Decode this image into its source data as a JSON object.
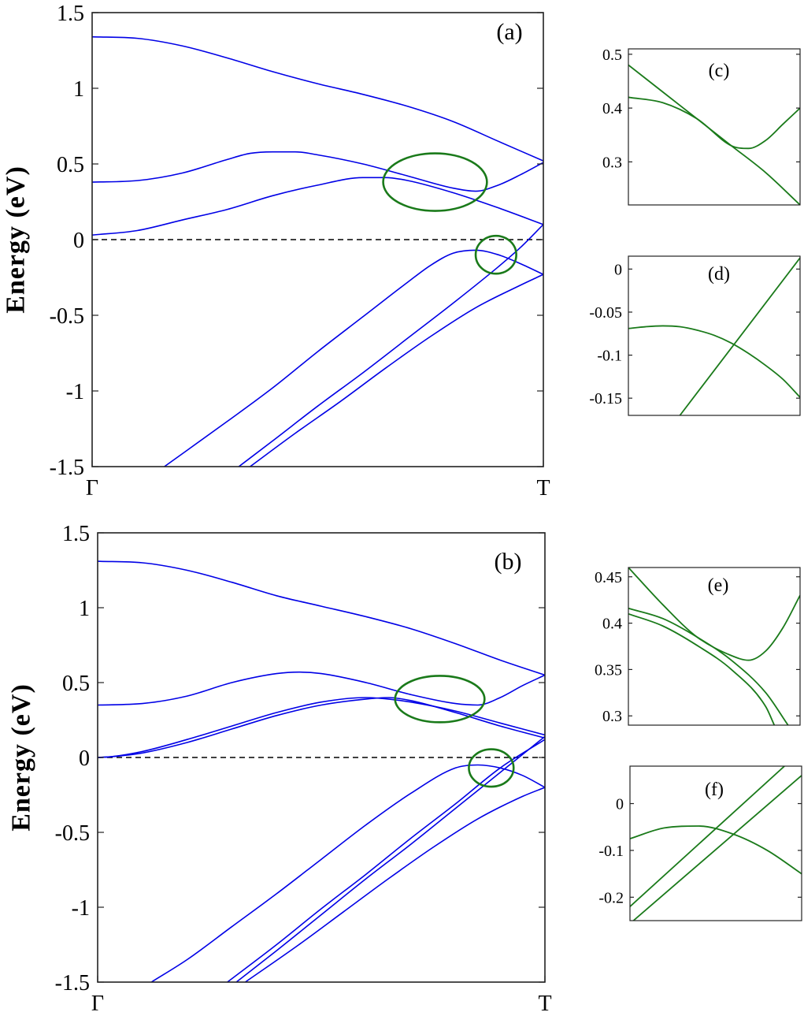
{
  "figure": {
    "colors": {
      "bands": "#0000e6",
      "highlight": "#1a7a1a",
      "fermi": "#000000"
    }
  },
  "chart_data": [
    {
      "id": "a",
      "type": "line",
      "panel_label": "(a)",
      "ylabel": "Energy (eV)",
      "ylim": [
        -1.5,
        1.5
      ],
      "yticks": [
        1.5,
        1,
        0.5,
        0,
        -0.5,
        -1,
        -1.5
      ],
      "ytick_labels": [
        "1.5",
        "1",
        "0.5",
        "0",
        "-0.5",
        "-1",
        "-1.5"
      ],
      "xlim": [
        0,
        1
      ],
      "xtick_labels": [
        "Γ",
        "T"
      ],
      "fermi_level": 0,
      "series": [
        {
          "name": "band 1",
          "x": [
            0,
            0.1,
            0.2,
            0.3,
            0.4,
            0.5,
            0.6,
            0.7,
            0.8,
            0.9,
            1
          ],
          "y": [
            1.34,
            1.33,
            1.28,
            1.2,
            1.11,
            1.03,
            0.96,
            0.88,
            0.78,
            0.65,
            0.52
          ]
        },
        {
          "name": "band 2",
          "x": [
            0,
            0.1,
            0.2,
            0.3,
            0.35,
            0.4,
            0.45,
            0.5,
            0.6,
            0.7,
            0.8,
            0.85,
            0.9,
            0.95,
            1
          ],
          "y": [
            0.38,
            0.39,
            0.44,
            0.53,
            0.57,
            0.58,
            0.58,
            0.56,
            0.5,
            0.42,
            0.34,
            0.32,
            0.36,
            0.43,
            0.51
          ]
        },
        {
          "name": "band 3",
          "x": [
            0,
            0.1,
            0.2,
            0.3,
            0.4,
            0.5,
            0.6,
            0.65,
            0.7,
            0.8,
            0.9,
            1
          ],
          "y": [
            0.03,
            0.06,
            0.13,
            0.2,
            0.29,
            0.36,
            0.41,
            0.41,
            0.39,
            0.31,
            0.21,
            0.1
          ]
        },
        {
          "name": "band 4",
          "x": [
            0.16,
            0.3,
            0.4,
            0.5,
            0.6,
            0.7,
            0.75,
            0.8,
            0.85,
            0.9,
            0.95,
            1
          ],
          "y": [
            -1.5,
            -1.2,
            -0.98,
            -0.74,
            -0.51,
            -0.28,
            -0.17,
            -0.09,
            -0.07,
            -0.1,
            -0.16,
            -0.23
          ]
        },
        {
          "name": "band 5",
          "x": [
            0.325,
            0.4,
            0.5,
            0.6,
            0.7,
            0.8,
            0.9,
            0.95,
            1
          ],
          "y": [
            -1.5,
            -1.33,
            -1.1,
            -0.88,
            -0.65,
            -0.42,
            -0.18,
            -0.05,
            0.1
          ]
        },
        {
          "name": "band 6",
          "x": [
            0.35,
            0.45,
            0.55,
            0.65,
            0.75,
            0.85,
            0.95,
            1
          ],
          "y": [
            -1.5,
            -1.28,
            -1.07,
            -0.85,
            -0.64,
            -0.45,
            -0.3,
            -0.23
          ]
        }
      ],
      "annotations": [
        {
          "type": "ellipse",
          "cx": 0.76,
          "cy": 0.38,
          "rx": 0.115,
          "ry": 0.19
        },
        {
          "type": "ellipse",
          "cx": 0.895,
          "cy": -0.1,
          "rx": 0.045,
          "ry": 0.125
        }
      ]
    },
    {
      "id": "b",
      "type": "line",
      "panel_label": "(b)",
      "ylabel": "Energy (eV)",
      "ylim": [
        -1.5,
        1.5
      ],
      "yticks": [
        1.5,
        1,
        0.5,
        0,
        -0.5,
        -1,
        -1.5
      ],
      "ytick_labels": [
        "1.5",
        "1",
        "0.5",
        "0",
        "-0.5",
        "-1",
        "-1.5"
      ],
      "xlim": [
        0,
        1
      ],
      "xtick_labels": [
        "Γ",
        "T"
      ],
      "fermi_level": 0,
      "series": [
        {
          "name": "band 1",
          "x": [
            0,
            0.1,
            0.2,
            0.3,
            0.4,
            0.5,
            0.6,
            0.7,
            0.8,
            0.9,
            1
          ],
          "y": [
            1.31,
            1.3,
            1.25,
            1.17,
            1.08,
            1.01,
            0.94,
            0.86,
            0.76,
            0.65,
            0.55
          ]
        },
        {
          "name": "band 2",
          "x": [
            0,
            0.1,
            0.2,
            0.3,
            0.4,
            0.45,
            0.5,
            0.6,
            0.7,
            0.8,
            0.85,
            0.9,
            0.95,
            1
          ],
          "y": [
            0.35,
            0.36,
            0.41,
            0.5,
            0.56,
            0.57,
            0.56,
            0.5,
            0.42,
            0.36,
            0.35,
            0.4,
            0.48,
            0.55
          ]
        },
        {
          "name": "band 3",
          "x": [
            0,
            0.03,
            0.1,
            0.2,
            0.3,
            0.4,
            0.5,
            0.6,
            0.65,
            0.7,
            0.8,
            0.9,
            1
          ],
          "y": [
            0,
            0.005,
            0.04,
            0.12,
            0.21,
            0.3,
            0.37,
            0.4,
            0.39,
            0.37,
            0.31,
            0.23,
            0.15
          ]
        },
        {
          "name": "band 4",
          "x": [
            0,
            0.03,
            0.1,
            0.2,
            0.3,
            0.4,
            0.5,
            0.6,
            0.65,
            0.7,
            0.8,
            0.9,
            1
          ],
          "y": [
            0,
            0.005,
            0.03,
            0.1,
            0.19,
            0.28,
            0.35,
            0.39,
            0.4,
            0.38,
            0.3,
            0.21,
            0.13
          ]
        },
        {
          "name": "band 5",
          "x": [
            0.12,
            0.2,
            0.3,
            0.4,
            0.5,
            0.6,
            0.7,
            0.8,
            0.85,
            0.9,
            0.95,
            1
          ],
          "y": [
            -1.5,
            -1.35,
            -1.13,
            -0.91,
            -0.68,
            -0.45,
            -0.24,
            -0.07,
            -0.05,
            -0.07,
            -0.12,
            -0.2
          ]
        },
        {
          "name": "band 6",
          "x": [
            0.29,
            0.4,
            0.5,
            0.6,
            0.7,
            0.8,
            0.9,
            1
          ],
          "y": [
            -1.5,
            -1.25,
            -1.01,
            -0.78,
            -0.54,
            -0.31,
            -0.07,
            0.12
          ]
        },
        {
          "name": "band 7",
          "x": [
            0.31,
            0.4,
            0.5,
            0.6,
            0.7,
            0.8,
            0.9,
            1
          ],
          "y": [
            -1.5,
            -1.29,
            -1.05,
            -0.81,
            -0.58,
            -0.34,
            -0.1,
            0.14
          ]
        },
        {
          "name": "band 8",
          "x": [
            0.33,
            0.45,
            0.55,
            0.65,
            0.75,
            0.85,
            0.95,
            1
          ],
          "y": [
            -1.5,
            -1.25,
            -1.03,
            -0.81,
            -0.6,
            -0.41,
            -0.26,
            -0.2
          ]
        }
      ],
      "annotations": [
        {
          "type": "ellipse",
          "cx": 0.765,
          "cy": 0.39,
          "rx": 0.1,
          "ry": 0.155
        },
        {
          "type": "ellipse",
          "cx": 0.88,
          "cy": -0.07,
          "rx": 0.05,
          "ry": 0.125
        }
      ]
    },
    {
      "id": "c",
      "type": "line",
      "panel_label": "(c)",
      "ylim": [
        0.22,
        0.51
      ],
      "yticks": [
        0.5,
        0.4,
        0.3
      ],
      "ytick_labels": [
        "0.5",
        "0.4",
        "0.3"
      ],
      "xlim": [
        0,
        1
      ],
      "series": [
        {
          "name": "band A",
          "x": [
            0,
            0.2,
            0.4,
            0.6,
            0.7,
            0.8,
            0.9,
            1
          ],
          "y": [
            0.42,
            0.41,
            0.38,
            0.33,
            0.325,
            0.34,
            0.37,
            0.4
          ]
        },
        {
          "name": "band B",
          "x": [
            0,
            0.2,
            0.4,
            0.6,
            0.8,
            1
          ],
          "y": [
            0.48,
            0.43,
            0.38,
            0.33,
            0.28,
            0.22
          ]
        }
      ]
    },
    {
      "id": "d",
      "type": "line",
      "panel_label": "(d)",
      "ylim": [
        -0.17,
        0.015
      ],
      "yticks": [
        0,
        -0.05,
        -0.1,
        -0.15
      ],
      "ytick_labels": [
        "0",
        "-0.05",
        "-0.1",
        "-0.15"
      ],
      "xlim": [
        0,
        1
      ],
      "series": [
        {
          "name": "band A",
          "x": [
            0,
            0.1,
            0.2,
            0.3,
            0.4,
            0.5,
            0.6,
            0.7,
            0.8,
            0.9,
            1
          ],
          "y": [
            -0.069,
            -0.067,
            -0.066,
            -0.067,
            -0.071,
            -0.077,
            -0.086,
            -0.098,
            -0.112,
            -0.128,
            -0.149
          ]
        },
        {
          "name": "band B",
          "x": [
            0.3,
            1
          ],
          "y": [
            -0.17,
            0.013
          ]
        }
      ]
    },
    {
      "id": "e",
      "type": "line",
      "panel_label": "(e)",
      "ylim": [
        0.29,
        0.46
      ],
      "yticks": [
        0.45,
        0.4,
        0.35,
        0.3
      ],
      "ytick_labels": [
        "0.45",
        "0.4",
        "0.35",
        "0.3"
      ],
      "xlim": [
        0,
        1
      ],
      "series": [
        {
          "name": "band A",
          "x": [
            0,
            0.2,
            0.4,
            0.6,
            0.7,
            0.8,
            0.9,
            1
          ],
          "y": [
            0.46,
            0.42,
            0.385,
            0.365,
            0.36,
            0.37,
            0.395,
            0.43
          ]
        },
        {
          "name": "band B",
          "x": [
            0,
            0.2,
            0.4,
            0.6,
            0.8,
            0.93
          ],
          "y": [
            0.416,
            0.405,
            0.385,
            0.36,
            0.325,
            0.29
          ]
        },
        {
          "name": "band C",
          "x": [
            0,
            0.2,
            0.4,
            0.6,
            0.8,
            0.85
          ],
          "y": [
            0.41,
            0.397,
            0.376,
            0.35,
            0.31,
            0.29
          ]
        }
      ]
    },
    {
      "id": "f",
      "type": "line",
      "panel_label": "(f)",
      "ylim": [
        -0.25,
        0.08
      ],
      "yticks": [
        0,
        -0.1,
        -0.2
      ],
      "ytick_labels": [
        "0",
        "-0.1",
        "-0.2"
      ],
      "xlim": [
        0,
        1
      ],
      "series": [
        {
          "name": "band A",
          "x": [
            0,
            0.2,
            0.4,
            0.6,
            0.8,
            1
          ],
          "y": [
            -0.075,
            -0.052,
            -0.048,
            -0.065,
            -0.1,
            -0.15
          ]
        },
        {
          "name": "band B",
          "x": [
            0,
            0.9
          ],
          "y": [
            -0.22,
            0.08
          ]
        },
        {
          "name": "band C",
          "x": [
            0.02,
            1
          ],
          "y": [
            -0.25,
            0.06
          ]
        }
      ]
    }
  ]
}
